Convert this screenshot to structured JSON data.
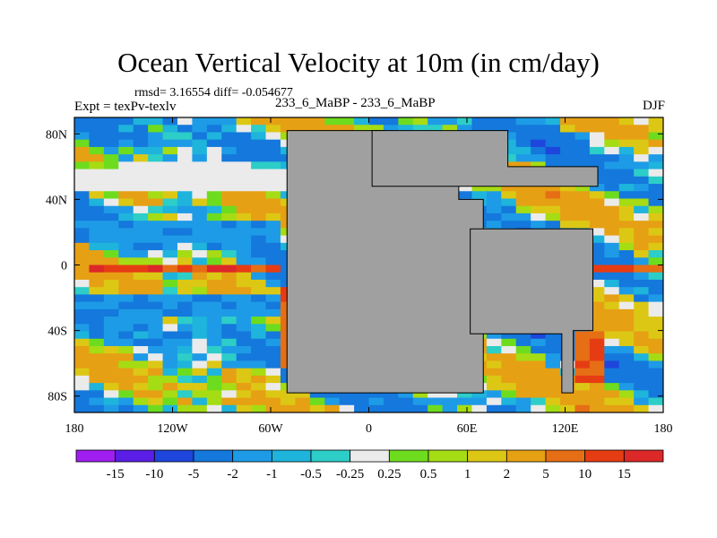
{
  "header": {
    "title": "Ocean Vertical Velocity at 10m (in cm/day)",
    "stats": "rmsd= 3.16554 diff= -0.054677",
    "experiment": "Expt = texPv-texlv",
    "case": "233_6_MaBP - 233_6_MaBP",
    "season": "DJF"
  },
  "chart_data": {
    "type": "heatmap",
    "title": "Ocean Vertical Velocity at 10m (in cm/day)",
    "subtitle": "rmsd= 3.16554 diff= -0.054677",
    "xlim": [
      -180,
      180
    ],
    "ylim": [
      -90,
      90
    ],
    "x_ticks": [
      -180,
      -120,
      -60,
      0,
      60,
      120,
      180
    ],
    "x_tick_labels": [
      "180",
      "120W",
      "60W",
      "0",
      "60E",
      "120E",
      "180"
    ],
    "y_ticks": [
      80,
      40,
      0,
      -40,
      -80
    ],
    "y_tick_labels": [
      "80N",
      "40N",
      "0",
      "40S",
      "80S"
    ],
    "colorbar": {
      "levels": [
        "-15",
        "-10",
        "-5",
        "-2",
        "-1",
        "-0.5",
        "-0.25",
        "0.25",
        "0.5",
        "1",
        "2",
        "5",
        "10",
        "15"
      ],
      "colors": [
        "#a01ef0",
        "#5a1ee6",
        "#1e46dc",
        "#1478dc",
        "#1e9be6",
        "#1eb4dc",
        "#2dcdc8",
        "#ebebeb",
        "#6edc1e",
        "#a5dc14",
        "#dcc814",
        "#e6a014",
        "#e66e14",
        "#e63c14",
        "#dc2828"
      ]
    },
    "land_color": "#a0a0a0",
    "land_regions": [
      {
        "name": "land-west",
        "lon": [
          -50,
          10,
          10,
          55,
          55,
          70,
          70,
          -50
        ],
        "lat": [
          82,
          82,
          60,
          60,
          40,
          40,
          -78,
          -78
        ]
      },
      {
        "name": "land-north",
        "lon": [
          2,
          85,
          85,
          140,
          140,
          2
        ],
        "lat": [
          82,
          82,
          60,
          60,
          48,
          48
        ]
      },
      {
        "name": "land-east",
        "lon": [
          62,
          137,
          137,
          125,
          125,
          118,
          118,
          99,
          99,
          62
        ],
        "lat": [
          22,
          22,
          -40,
          -40,
          -78,
          -78,
          -42,
          -42,
          -42,
          -42
        ]
      }
    ],
    "features": [
      {
        "name": "equatorial-warm-band",
        "lon": [
          -175,
          -60
        ],
        "lat": [
          -3,
          3
        ],
        "value": 15
      },
      {
        "name": "equatorial-warm-band-east",
        "lon": [
          70,
          180
        ],
        "lat": [
          -4,
          2
        ],
        "value": 10
      },
      {
        "name": "subtropical-downwelling-north",
        "lon": [
          -180,
          -60
        ],
        "lat": [
          18,
          28
        ],
        "value": -2
      },
      {
        "name": "subtropical-downwelling-south",
        "lon": [
          -180,
          -60
        ],
        "lat": [
          -30,
          -18
        ],
        "value": -2
      },
      {
        "name": "high-latitude-neutral-north",
        "lon": [
          -180,
          -45
        ],
        "lat": [
          48,
          62
        ],
        "value": 0
      },
      {
        "name": "coastal-upwelling-west",
        "lon": [
          -58,
          -50
        ],
        "lat": [
          -60,
          -10
        ],
        "value": 10
      },
      {
        "name": "coastal-upwelling-east",
        "lon": [
          125,
          140
        ],
        "lat": [
          -70,
          -40
        ],
        "value": 10
      }
    ]
  }
}
